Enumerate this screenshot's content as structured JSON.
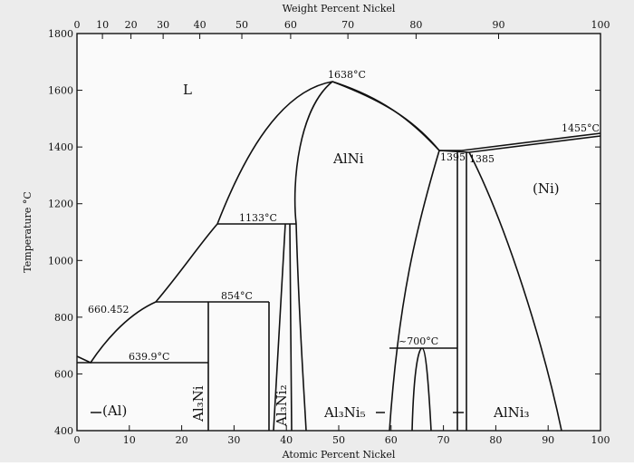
{
  "top_axis": {
    "title": "Weight Percent Nickel",
    "ticks": [
      0,
      10,
      20,
      30,
      40,
      50,
      60,
      70,
      80,
      90,
      100
    ]
  },
  "bottom_axis": {
    "title": "Atomic Percent Nickel",
    "ticks": [
      0,
      10,
      20,
      30,
      40,
      50,
      60,
      70,
      80,
      90,
      100
    ]
  },
  "left_axis": {
    "title": "Temperature °C",
    "ticks": [
      400,
      600,
      800,
      1000,
      1200,
      1400,
      1600,
      1800
    ]
  },
  "labels": {
    "liquid": "L",
    "peak": "1638°C",
    "alni": "AlNi",
    "t1133": "1133°C",
    "t854": "854°C",
    "al_melt": "660.452",
    "eutectic": "639.9°C",
    "al": "(Al)",
    "al3ni": "Al₃Ni",
    "al3ni2": "Al₃Ni₂",
    "al3ni5": "Al₃Ni₅",
    "t700": "~700°C",
    "alni3": "AlNi₃",
    "t1395": "1395",
    "t1385": "1385",
    "t1455": "1455°C",
    "ni": "(Ni)"
  }
}
